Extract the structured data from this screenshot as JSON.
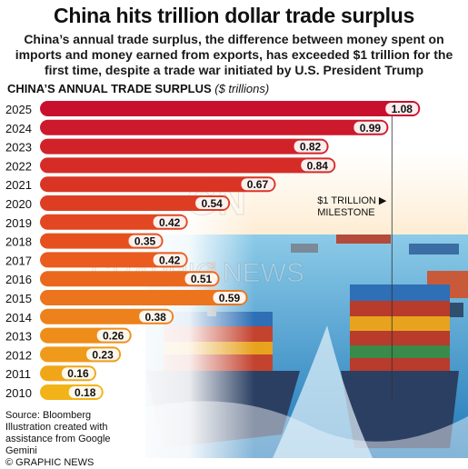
{
  "header": {
    "title": "China hits trillion dollar trade surplus",
    "subtitle": "China’s annual trade surplus, the difference between money spent on imports and money earned from exports, has exceeded $1 trillion for the first time, despite a trade war initiated by U.S. President Trump"
  },
  "chart_data": {
    "type": "bar",
    "orientation": "horizontal",
    "title": "CHINA’S ANNUAL TRADE SURPLUS",
    "unit": "($ trillions)",
    "categories": [
      "2025",
      "2024",
      "2023",
      "2022",
      "2021",
      "2020",
      "2019",
      "2018",
      "2017",
      "2016",
      "2015",
      "2014",
      "2013",
      "2012",
      "2011",
      "2010"
    ],
    "values": [
      1.08,
      0.99,
      0.82,
      0.84,
      0.67,
      0.54,
      0.42,
      0.35,
      0.42,
      0.51,
      0.59,
      0.38,
      0.26,
      0.23,
      0.16,
      0.18
    ],
    "data_labels": [
      "1.08",
      "0.99",
      "0.82",
      "0.84",
      "0.67",
      "0.54",
      "0.42",
      "0.35",
      "0.42",
      "0.51",
      "0.59",
      "0.38",
      "0.26",
      "0.23",
      "0.16",
      "0.18"
    ],
    "xlim": [
      0,
      1.1
    ],
    "annotations": [
      {
        "text": "$1 TRILLION MILESTONE",
        "x": 1.0
      }
    ],
    "colors": {
      "high": "#c8102e",
      "mid": "#e8551e",
      "low": "#f2b318"
    }
  },
  "footer": {
    "source": "Source: Bloomberg",
    "credit": "Illustration created with assistance from Google Gemini",
    "copyright": "© GRAPHIC NEWS"
  },
  "watermark": {
    "logo": "GN",
    "text": "GRAPHIC NEWS"
  }
}
